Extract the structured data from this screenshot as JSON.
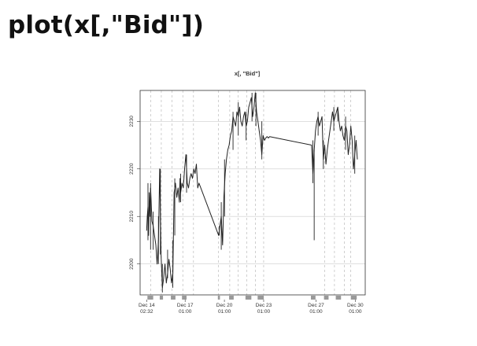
{
  "page": {
    "heading": "plot(x[,\"Bid\"])"
  },
  "chart_data": {
    "type": "line",
    "title": "x[, \"Bid\"]",
    "xlabel": "",
    "ylabel": "",
    "ylim": [
      2193.5,
      2236.5
    ],
    "y_ticks": [
      2200,
      2210,
      2220,
      2230
    ],
    "grid": true,
    "line_color": "#222222",
    "x_tick_labels": [
      {
        "line1": "Dec 14",
        "line2": "02:32",
        "t": 0.0
      },
      {
        "line1": "Dec 17",
        "line2": "01:00",
        "t": 2.94
      },
      {
        "line1": "Dec 20",
        "line2": "01:00",
        "t": 5.94
      },
      {
        "line1": "Dec 23",
        "line2": "01:00",
        "t": 8.94
      },
      {
        "line1": "Dec 27",
        "line2": "01:00",
        "t": 12.94
      },
      {
        "line1": "Dec 30",
        "line2": "01:00",
        "t": 15.94
      }
    ],
    "x_range_days": [
      -0.5,
      16.7
    ],
    "session_lines_days": [
      0.3,
      1.12,
      1.94,
      2.76,
      3.58,
      5.48,
      6.35,
      7.0,
      7.65,
      8.3,
      8.94,
      13.6,
      14.35,
      15.1,
      15.6
    ],
    "session_bars_days": [
      [
        0.06,
        0.5
      ],
      [
        1.0,
        1.25
      ],
      [
        1.85,
        2.2
      ],
      [
        2.7,
        3.05
      ],
      [
        5.44,
        5.6
      ],
      [
        6.3,
        6.65
      ],
      [
        7.55,
        8.0
      ],
      [
        8.48,
        8.95
      ],
      [
        12.55,
        12.9
      ],
      [
        13.55,
        13.9
      ],
      [
        14.45,
        14.85
      ],
      [
        15.6,
        16.05
      ]
    ],
    "series": [
      {
        "x": [
          0.0,
          0.05,
          0.1,
          0.15,
          0.2,
          0.25,
          0.3,
          0.35,
          0.4,
          0.5,
          0.6,
          0.7,
          0.8,
          0.9,
          1.0,
          1.1,
          1.2,
          1.3,
          1.4,
          1.5,
          1.6,
          1.7,
          1.8,
          1.9,
          2.0,
          2.1,
          2.2,
          2.3,
          2.4,
          2.5,
          2.55,
          2.6,
          2.7,
          2.8,
          2.9,
          3.0,
          3.1,
          3.2,
          3.3,
          3.4,
          3.5,
          3.6,
          3.7,
          3.8,
          3.9,
          4.0,
          5.5,
          5.6,
          5.7,
          5.8,
          5.9,
          6.0,
          6.1,
          6.2,
          6.3,
          6.4,
          6.5,
          6.6,
          6.7,
          6.8,
          6.9,
          7.0,
          7.1,
          7.2,
          7.3,
          7.4,
          7.5,
          7.6,
          7.7,
          7.8,
          7.9,
          8.0,
          8.1,
          8.2,
          8.3,
          8.4,
          8.5,
          8.6,
          8.7,
          8.8,
          8.9,
          9.0,
          9.1,
          9.2,
          9.3,
          9.4,
          12.6,
          12.7,
          12.8,
          12.9,
          13.0,
          13.1,
          13.2,
          13.3,
          13.4,
          13.5,
          13.6,
          13.7,
          13.8,
          13.9,
          14.0,
          14.1,
          14.2,
          14.3,
          14.4,
          14.5,
          14.6,
          14.7,
          14.8,
          14.9,
          15.0,
          15.1,
          15.2,
          15.3,
          15.4,
          15.5,
          15.6,
          15.7,
          15.8,
          15.9,
          16.0,
          16.1
        ],
        "values": [
          2207,
          2210,
          2212,
          2206,
          2215,
          2210,
          2216,
          2213,
          2209,
          2208,
          2206,
          2204,
          2200,
          2205,
          2220,
          2202,
          2195,
          2197,
          2200,
          2196,
          2198,
          2201,
          2199,
          2196,
          2198,
          2215,
          2217,
          2214,
          2216,
          2213,
          2218,
          2215,
          2217,
          2216,
          2220,
          2223,
          2217,
          2216,
          2218,
          2219,
          2218,
          2220,
          2219,
          2221,
          2216,
          2217,
          2206,
          2208,
          2210,
          2204,
          2214,
          2219,
          2222,
          2224,
          2225,
          2227,
          2228,
          2231,
          2230,
          2229,
          2232,
          2231,
          2233,
          2230,
          2229,
          2231,
          2232,
          2229,
          2230,
          2233,
          2234,
          2235,
          2231,
          2233,
          2236,
          2232,
          2230,
          2228,
          2226,
          2223,
          2227,
          2226,
          2226.5,
          2226.8,
          2226.5,
          2226.8,
          2225,
          2219,
          2224,
          2228,
          2230,
          2231,
          2229,
          2230,
          2231,
          2222,
          2225,
          2221,
          2224,
          2226,
          2228,
          2230,
          2232,
          2230,
          2231,
          2232,
          2233,
          2230,
          2228,
          2229,
          2227,
          2226,
          2229,
          2228,
          2223,
          2225,
          2229,
          2226,
          2220,
          2223,
          2226,
          2222
        ]
      }
    ],
    "spikes": [
      {
        "x": 0.1,
        "low": 2205,
        "high": 2217
      },
      {
        "x": 0.3,
        "low": 2203,
        "high": 2217
      },
      {
        "x": 0.5,
        "low": 2203,
        "high": 2211
      },
      {
        "x": 0.9,
        "low": 2200,
        "high": 2210
      },
      {
        "x": 1.05,
        "low": 2202,
        "high": 2220
      },
      {
        "x": 1.2,
        "low": 2194,
        "high": 2200
      },
      {
        "x": 1.6,
        "low": 2197,
        "high": 2203
      },
      {
        "x": 2.0,
        "low": 2195,
        "high": 2205
      },
      {
        "x": 2.15,
        "low": 2206,
        "high": 2218
      },
      {
        "x": 2.6,
        "low": 2213,
        "high": 2219
      },
      {
        "x": 3.05,
        "low": 2215,
        "high": 2223
      },
      {
        "x": 5.55,
        "low": 2206,
        "high": 2208
      },
      {
        "x": 5.7,
        "low": 2203,
        "high": 2213
      },
      {
        "x": 5.95,
        "low": 2210,
        "high": 2222
      },
      {
        "x": 6.6,
        "low": 2224,
        "high": 2232
      },
      {
        "x": 7.0,
        "low": 2227,
        "high": 2234
      },
      {
        "x": 7.6,
        "low": 2226,
        "high": 2232
      },
      {
        "x": 8.05,
        "low": 2230,
        "high": 2236
      },
      {
        "x": 8.35,
        "low": 2229,
        "high": 2236
      },
      {
        "x": 8.8,
        "low": 2222,
        "high": 2230
      },
      {
        "x": 12.7,
        "low": 2217,
        "high": 2226
      },
      {
        "x": 12.8,
        "low": 2205,
        "high": 2224
      },
      {
        "x": 13.1,
        "low": 2227,
        "high": 2232
      },
      {
        "x": 13.5,
        "low": 2220,
        "high": 2226
      },
      {
        "x": 14.3,
        "low": 2228,
        "high": 2233
      },
      {
        "x": 14.6,
        "low": 2230,
        "high": 2233
      },
      {
        "x": 15.2,
        "low": 2224,
        "high": 2231
      },
      {
        "x": 15.9,
        "low": 2219,
        "high": 2227
      }
    ]
  }
}
